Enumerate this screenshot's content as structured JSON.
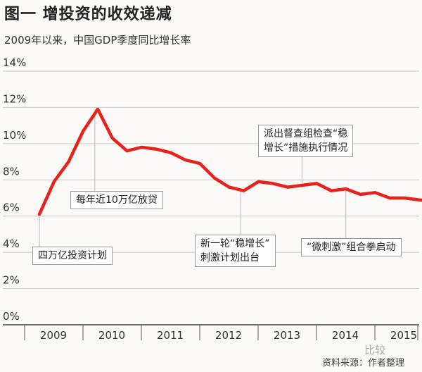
{
  "title": "图一  增投资的收效递减",
  "subtitle": "2009年以来，中国GDP季度同比增长率",
  "source": "资料来源：作者整理",
  "watermark": "比较",
  "chart_data": {
    "type": "line",
    "title": "图一  增投资的收效递减",
    "subtitle": "2009年以来，中国GDP季度同比增长率",
    "xlabel": "",
    "ylabel": "",
    "ylim": [
      0,
      14
    ],
    "y_ticks": [
      "0%",
      "2%",
      "4%",
      "6%",
      "8%",
      "10%",
      "12%",
      "14%"
    ],
    "y_tick_values": [
      0,
      2,
      4,
      6,
      8,
      10,
      12,
      14
    ],
    "x_labels": [
      "2009",
      "2010",
      "2011",
      "2012",
      "2013",
      "2014",
      "2015"
    ],
    "grid": true,
    "line_color": "#e8221b",
    "series": [
      {
        "x": [
          2009.0,
          2009.25,
          2009.5,
          2009.75,
          2010.0,
          2010.25,
          2010.5,
          2010.75,
          2011.0,
          2011.25,
          2011.5,
          2011.75,
          2012.0,
          2012.25,
          2012.5,
          2012.75,
          2013.0,
          2013.25,
          2013.5,
          2013.75,
          2014.0,
          2014.25,
          2014.5,
          2014.75,
          2015.0,
          2015.25,
          2015.5,
          2015.75
        ],
        "values": [
          6.1,
          7.9,
          9.0,
          10.7,
          11.9,
          10.3,
          9.6,
          9.8,
          9.7,
          9.5,
          9.1,
          8.9,
          8.1,
          7.6,
          7.4,
          7.9,
          7.8,
          7.6,
          7.7,
          7.8,
          7.4,
          7.5,
          7.2,
          7.3,
          7.0,
          7.0,
          6.9,
          6.8
        ]
      }
    ],
    "annotations": [
      {
        "lines": [
          "四万亿投资计划"
        ],
        "x": 2009.0,
        "y": 6.1
      },
      {
        "lines": [
          "每年近10万亿放贷"
        ],
        "x": 2009.95,
        "y": 11.9
      },
      {
        "lines": [
          "新一轮“稳增长”",
          "刺激计划出台"
        ],
        "x": 2012.45,
        "y": 7.4
      },
      {
        "lines": [
          "派出督查组检查“稳",
          "增长”措施执行情况"
        ],
        "x": 2013.5,
        "y": 7.8
      },
      {
        "lines": [
          "“微刺激”组合拳启动"
        ],
        "x": 2014.25,
        "y": 7.4
      }
    ]
  }
}
